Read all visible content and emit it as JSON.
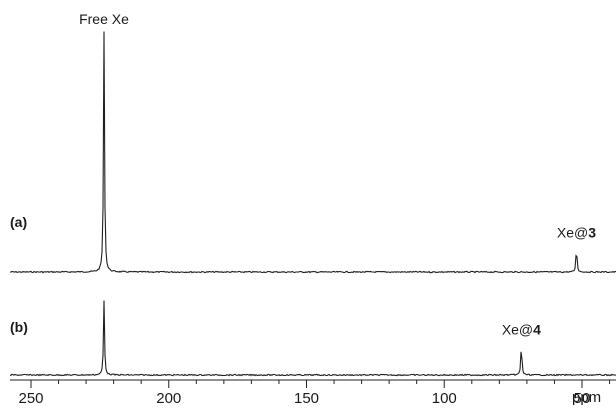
{
  "chart_data": {
    "type": "line",
    "title": "",
    "xlabel": "ppm",
    "xlim": [
      255,
      20
    ],
    "x_reversed": true,
    "x_ticks": [
      250,
      200,
      150,
      100,
      50
    ],
    "x_tick_labels": [
      "250",
      "200",
      "150",
      "100",
      "50"
    ],
    "grid": false,
    "series": [
      {
        "name": "(a)",
        "label_main": "(a)",
        "peaks": [
          {
            "x": 223.5,
            "rel_height": 1.0,
            "label": "Free Xe"
          },
          {
            "x": 52,
            "rel_height": 0.11,
            "label_text": "Xe@",
            "label_bold": "3"
          }
        ]
      },
      {
        "name": "(b)",
        "label_main": "(b)",
        "peaks": [
          {
            "x": 223.5,
            "rel_height": 0.31
          },
          {
            "x": 72,
            "rel_height": 0.135,
            "label_text": "Xe@",
            "label_bold": "4"
          }
        ]
      }
    ]
  }
}
